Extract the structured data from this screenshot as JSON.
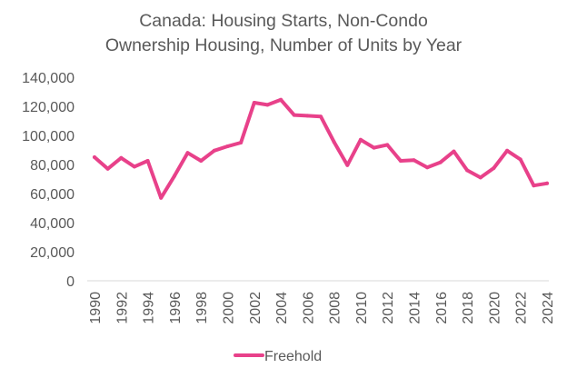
{
  "chart_data": {
    "type": "line",
    "title_lines": [
      "Canada: Housing Starts, Non-Condo",
      "Ownership Housing, Number of Units by Year"
    ],
    "xlabel": "",
    "ylabel": "",
    "ylim": [
      0,
      140000
    ],
    "y_ticks": [
      0,
      20000,
      40000,
      60000,
      80000,
      100000,
      120000,
      140000
    ],
    "y_tick_labels": [
      "0",
      "20,000",
      "40,000",
      "60,000",
      "80,000",
      "100,000",
      "120,000",
      "140,000"
    ],
    "x": [
      1990,
      1991,
      1992,
      1993,
      1994,
      1995,
      1996,
      1997,
      1998,
      1999,
      2000,
      2001,
      2002,
      2003,
      2004,
      2005,
      2006,
      2007,
      2008,
      2009,
      2010,
      2011,
      2012,
      2013,
      2014,
      2015,
      2016,
      2017,
      2018,
      2019,
      2020,
      2021,
      2022,
      2023,
      2024
    ],
    "x_tick_labels": [
      "1990",
      "1992",
      "1994",
      "1996",
      "1998",
      "2000",
      "2002",
      "2004",
      "2006",
      "2008",
      "2010",
      "2012",
      "2014",
      "2016",
      "2018",
      "2020",
      "2022",
      "2024"
    ],
    "grid": false,
    "legend_position": "bottom",
    "series": [
      {
        "name": "Freehold",
        "color": "#E8418A",
        "values": [
          85000,
          77000,
          84500,
          78500,
          82500,
          57000,
          72000,
          88000,
          82500,
          89500,
          92500,
          95000,
          122500,
          121000,
          124500,
          114000,
          113500,
          113000,
          95500,
          79500,
          97000,
          91500,
          93500,
          82500,
          83000,
          78000,
          81500,
          89000,
          76000,
          71000,
          77500,
          89500,
          83500,
          65500,
          67000
        ]
      }
    ]
  }
}
